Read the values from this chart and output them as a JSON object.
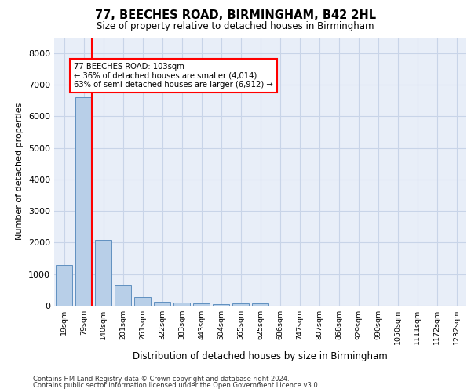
{
  "title_line1": "77, BEECHES ROAD, BIRMINGHAM, B42 2HL",
  "title_line2": "Size of property relative to detached houses in Birmingham",
  "xlabel": "Distribution of detached houses by size in Birmingham",
  "ylabel": "Number of detached properties",
  "categories": [
    "19sqm",
    "79sqm",
    "140sqm",
    "201sqm",
    "261sqm",
    "322sqm",
    "383sqm",
    "443sqm",
    "504sqm",
    "565sqm",
    "625sqm",
    "686sqm",
    "747sqm",
    "807sqm",
    "868sqm",
    "929sqm",
    "990sqm",
    "1050sqm",
    "1111sqm",
    "1172sqm",
    "1232sqm"
  ],
  "values": [
    1300,
    6600,
    2075,
    650,
    280,
    130,
    90,
    65,
    50,
    80,
    85,
    0,
    0,
    0,
    0,
    0,
    0,
    0,
    0,
    0,
    0
  ],
  "bar_color": "#b8cfe8",
  "bar_edge_color": "#6090c0",
  "property_line_label": "77 BEECHES ROAD: 103sqm",
  "annotation_line2": "← 36% of detached houses are smaller (4,014)",
  "annotation_line3": "63% of semi-detached houses are larger (6,912) →",
  "ylim": [
    0,
    8500
  ],
  "yticks": [
    0,
    1000,
    2000,
    3000,
    4000,
    5000,
    6000,
    7000,
    8000
  ],
  "grid_color": "#c8d4e8",
  "bg_color": "#e8eef8",
  "footnote1": "Contains HM Land Registry data © Crown copyright and database right 2024.",
  "footnote2": "Contains public sector information licensed under the Open Government Licence v3.0."
}
